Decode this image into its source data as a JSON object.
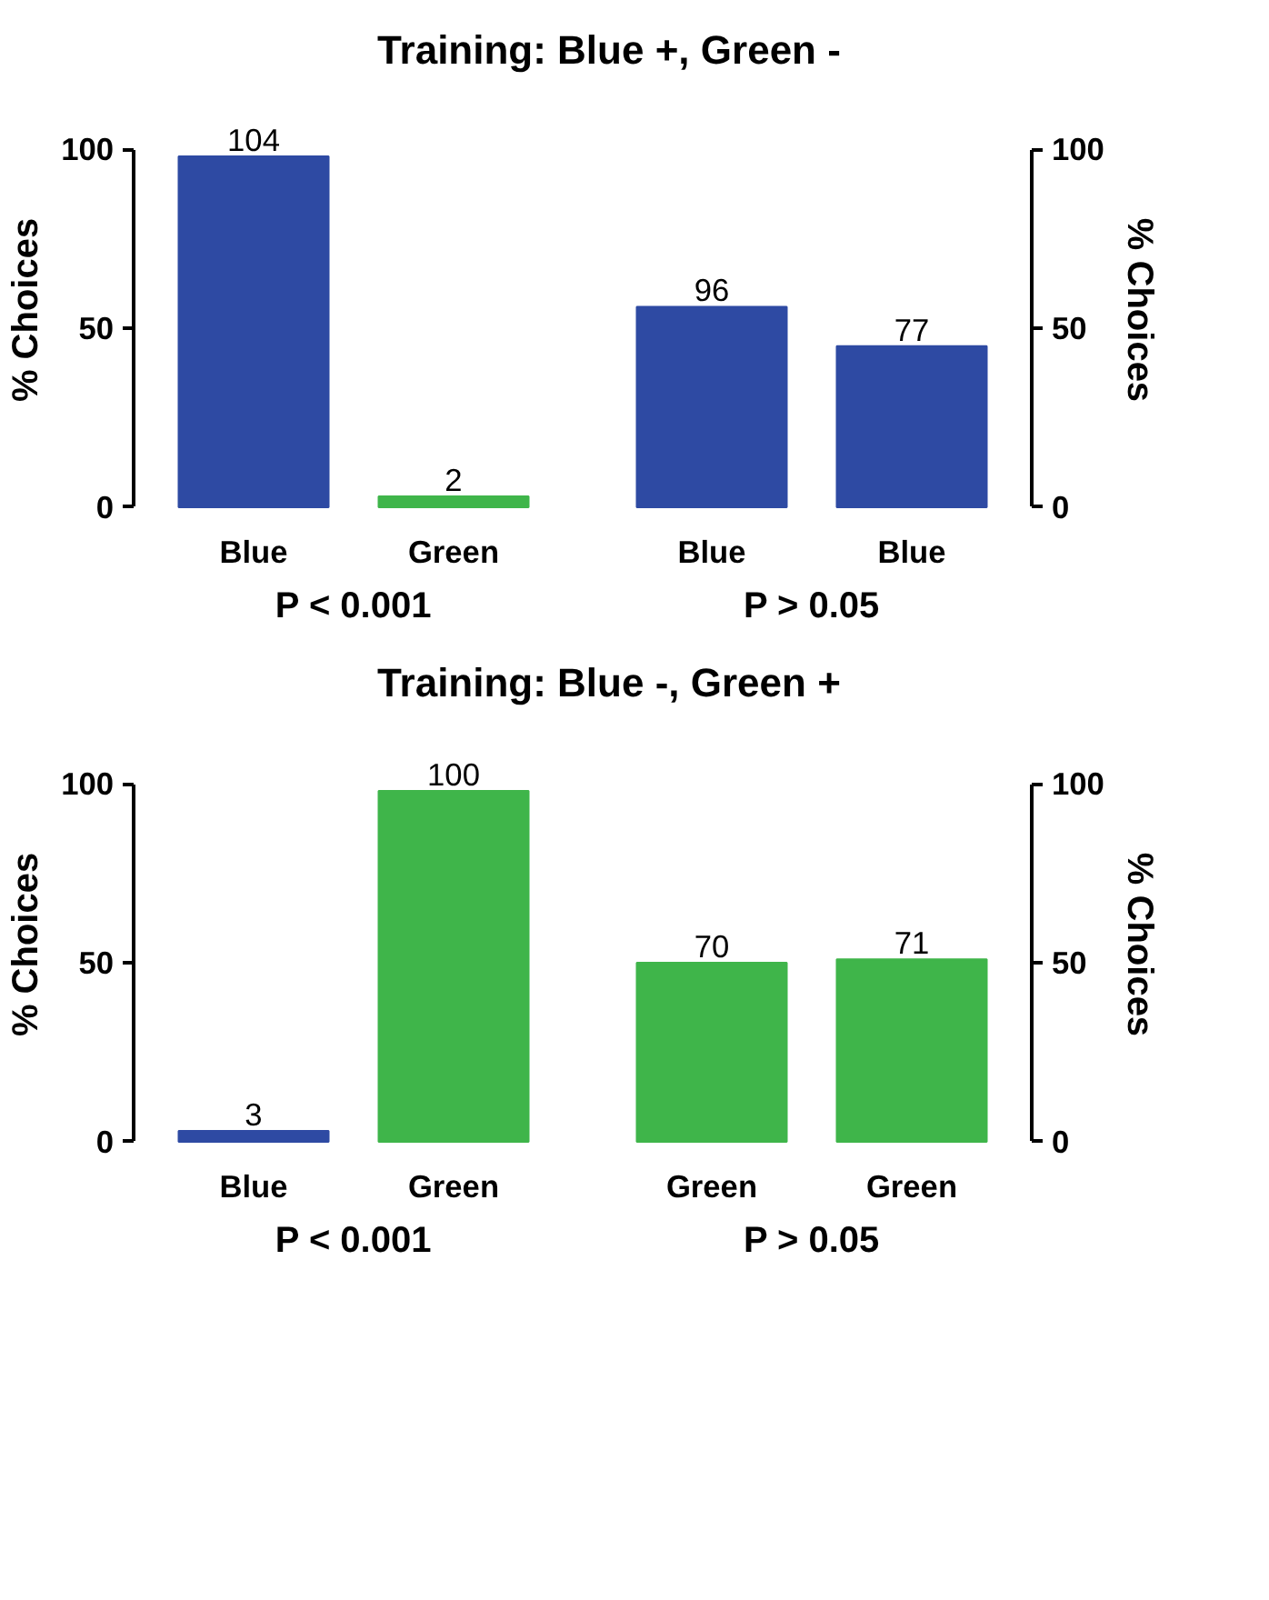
{
  "chart_data": [
    {
      "type": "bar",
      "title": "Training: Blue +,  Green -",
      "ylabel": "% Choices",
      "categories": [
        "Blue",
        "Green"
      ],
      "series": [
        {
          "axis": "y",
          "values": [
            98,
            3
          ],
          "colors": [
            "#2e4aa3",
            "#3fb54a"
          ]
        }
      ],
      "ylim": [
        0,
        100
      ],
      "yticks": [
        0,
        50,
        100
      ],
      "annotations": [
        {
          "text": "104",
          "x": "Blue",
          "y": 98
        },
        {
          "text": "2",
          "x": "Green",
          "y": 3
        },
        "P < 0.001"
      ]
    },
    {
      "type": "bar",
      "y2label": "% Choices",
      "categories": [
        "Blue",
        "Blue"
      ],
      "series": [
        {
          "axis": "y2",
          "values": [
            56,
            45
          ],
          "colors": [
            "#2e4aa3",
            "#2e4aa3"
          ]
        }
      ],
      "y2lim": [
        0,
        100
      ],
      "y2ticks": [
        0,
        50,
        100
      ],
      "annotations": [
        "96",
        "77",
        "P > 0.05"
      ]
    },
    {
      "type": "bar",
      "title": "Training: Blue -,  Green +",
      "ylabel": "% Choices",
      "categories": [
        "Blue",
        "Green"
      ],
      "series": [
        {
          "axis": "y",
          "values": [
            3,
            98
          ],
          "colors": [
            "#2e4aa3",
            "#3fb54a"
          ]
        }
      ],
      "ylim": [
        0,
        100
      ],
      "yticks": [
        0,
        50,
        100
      ],
      "annotations": [
        {
          "text": "3",
          "x": "Blue",
          "y": 3
        },
        {
          "text": "100",
          "x": "Green",
          "y": 98
        },
        "P < 0.001"
      ]
    },
    {
      "type": "bar",
      "y2label": "% Choices",
      "categories": [
        "Green",
        "Green"
      ],
      "series": [
        {
          "axis": "y2",
          "values": [
            50,
            51
          ],
          "colors": [
            "#3fb54a",
            "#3fb54a"
          ]
        }
      ],
      "y2lim": [
        0,
        100
      ],
      "y2ticks": [
        0,
        50,
        100
      ],
      "annotations": [
        "70",
        "71",
        "P > 0.05"
      ]
    }
  ]
}
